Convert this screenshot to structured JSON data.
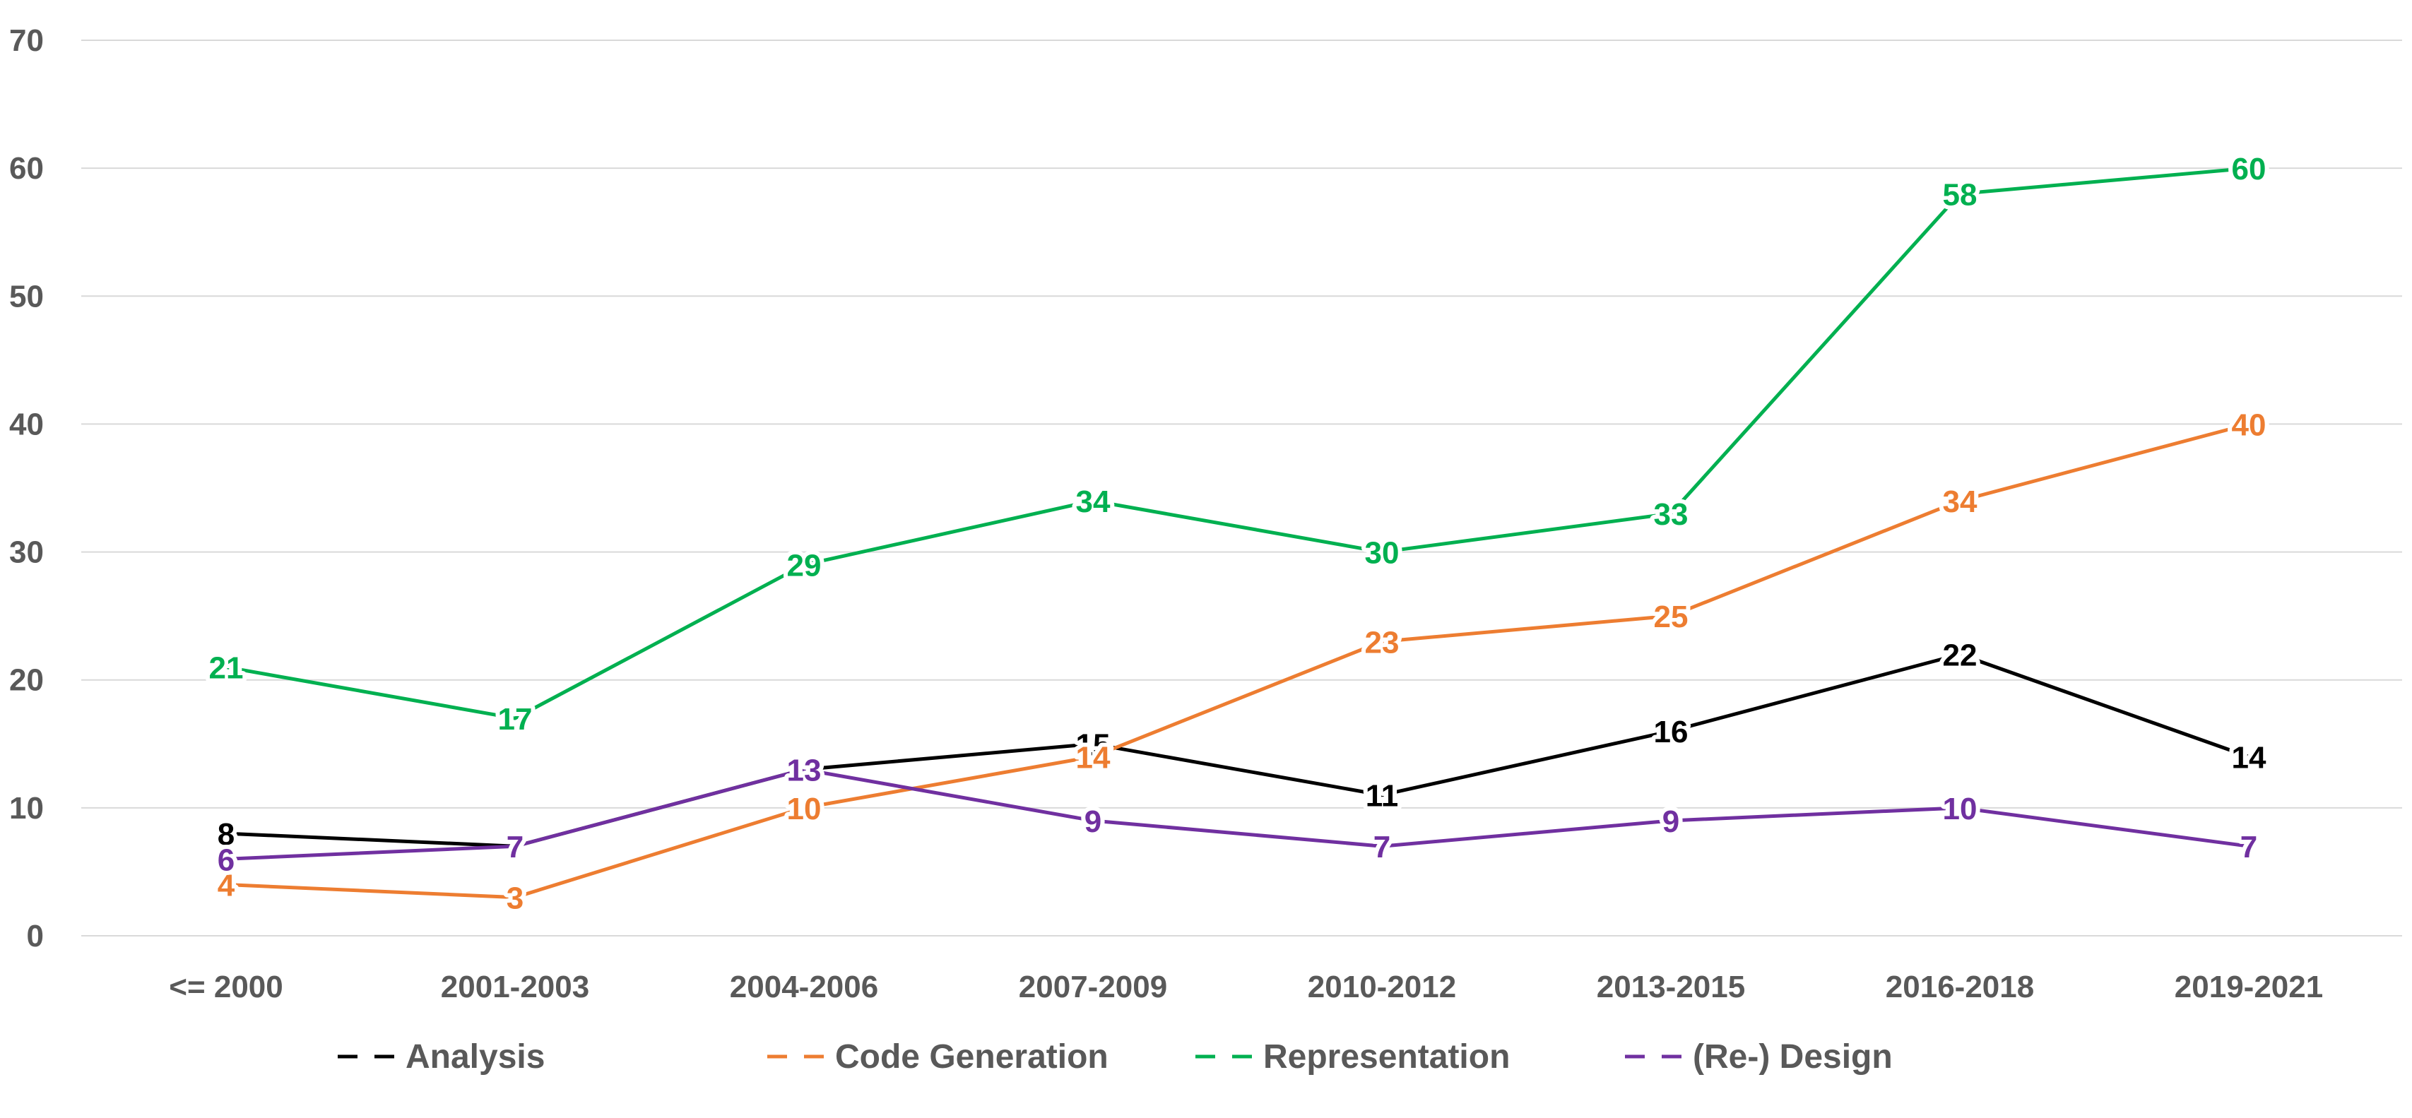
{
  "chart_data": {
    "type": "line",
    "title": "",
    "xlabel": "",
    "ylabel": "",
    "ylim": [
      0,
      70
    ],
    "yticks": [
      0,
      10,
      20,
      30,
      40,
      50,
      60,
      70
    ],
    "ytick_labels": [
      "0",
      "10",
      "20",
      "30",
      "40",
      "50",
      "60",
      "70"
    ],
    "grid": true,
    "legend_position": "bottom",
    "categories": [
      "<= 2000",
      "2001-2003",
      "2004-2006",
      "2007-2009",
      "2010-2012",
      "2013-2015",
      "2016-2018",
      "2019-2021"
    ],
    "series": [
      {
        "name": "Analysis",
        "color": "#000000",
        "values": [
          8,
          7,
          13,
          15,
          11,
          16,
          22,
          14
        ]
      },
      {
        "name": "Code Generation",
        "color": "#ED7D31",
        "values": [
          4,
          3,
          10,
          14,
          23,
          25,
          34,
          40
        ]
      },
      {
        "name": "Representation",
        "color": "#00B050",
        "values": [
          21,
          17,
          29,
          34,
          30,
          33,
          58,
          60
        ]
      },
      {
        "name": "(Re-) Design",
        "color": "#7030A0",
        "values": [
          6,
          7,
          13,
          9,
          7,
          9,
          10,
          7
        ]
      }
    ]
  }
}
